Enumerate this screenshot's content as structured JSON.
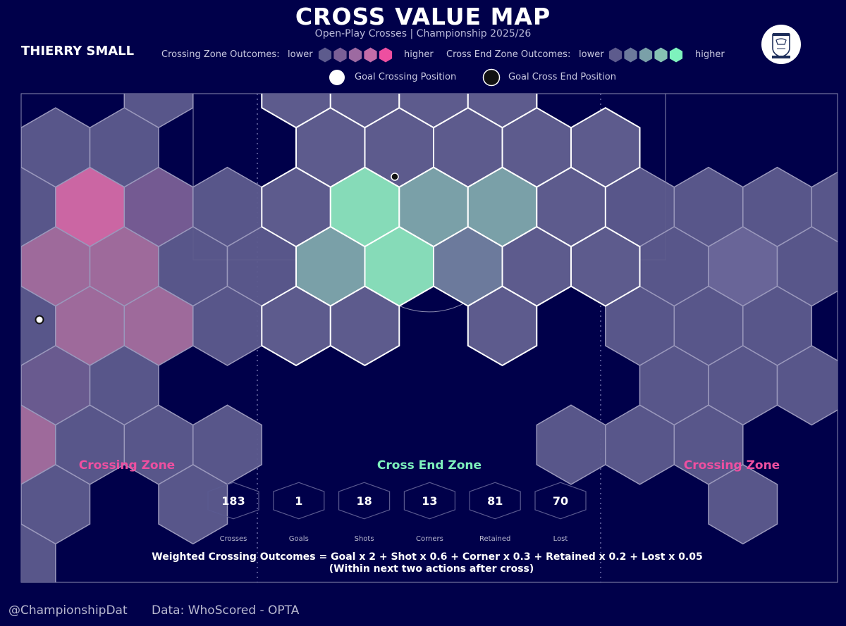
{
  "title": "CROSS VALUE MAP",
  "subtitle": "Open-Play Crosses | Championship 2025/26",
  "player": "THIERRY SMALL",
  "legend": {
    "crossing_label": "Crossing Zone Outcomes:",
    "end_label": "Cross End Zone Outcomes:",
    "lower": "lower",
    "higher": "higher",
    "goal_cross_pos": "Goal Crossing Position",
    "goal_end_pos": "Goal Cross End Position",
    "crossing_colors": [
      "#5d5b8d",
      "#7a5f96",
      "#9d6aa1",
      "#c46ca8",
      "#ee4fa0"
    ],
    "end_colors": [
      "#5d5b8d",
      "#6c7a9c",
      "#7aa0a8",
      "#86c2b3",
      "#7ef2bd"
    ]
  },
  "zones": {
    "left": "Crossing Zone",
    "center": "Cross End Zone",
    "right": "Crossing Zone",
    "crossing_color": "#ee4fa0",
    "end_color": "#7ef2bd"
  },
  "stats": [
    {
      "label": "Crosses",
      "value": "183"
    },
    {
      "label": "Goals",
      "value": "1"
    },
    {
      "label": "Shots",
      "value": "18"
    },
    {
      "label": "Corners",
      "value": "13"
    },
    {
      "label": "Retained",
      "value": "81"
    },
    {
      "label": "Lost",
      "value": "70"
    }
  ],
  "formula": "Weighted Crossing Outcomes = Goal x 2 + Shot x 0.6 + Corner x 0.3 + Retained x 0.2 + Lost x 0.05",
  "formula_note": "(Within next two actions after cross)",
  "footer": {
    "handle": "@ChampionshipDat",
    "source": "Data: WhoScored - OPTA"
  },
  "chart_data": {
    "type": "heatmap",
    "colors": {
      "background": "#00004a",
      "crossing_high": "#ee4fa0",
      "end_high": "#7ef2bd",
      "base": "#5d5b8d"
    }
  }
}
